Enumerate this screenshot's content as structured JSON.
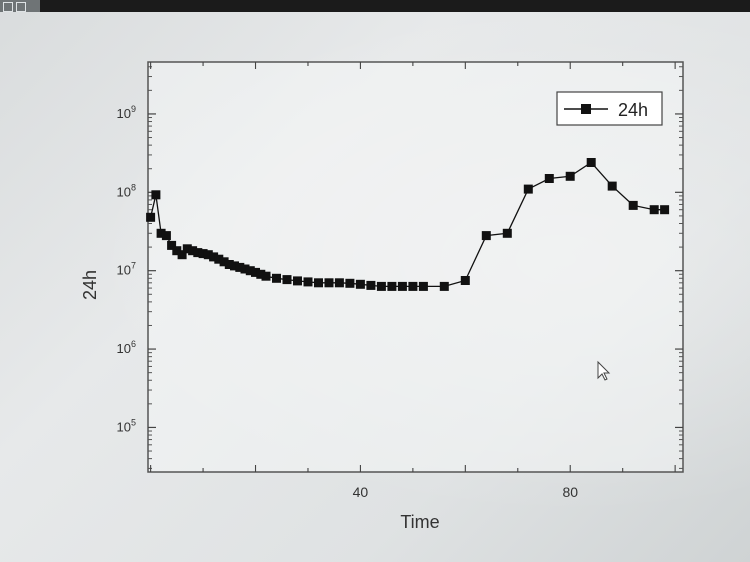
{
  "chart_data": {
    "type": "line",
    "xlabel": "Time",
    "ylabel": "24h",
    "x_ticks": [
      40,
      80
    ],
    "y_ticks": [
      100000,
      1000000,
      10000000,
      100000000,
      1000000000
    ],
    "y_tick_exponents": [
      "5",
      "6",
      "7",
      "8",
      "9"
    ],
    "y_tick_base": "10",
    "xlim": [
      -0.5,
      101.5
    ],
    "ylim": [
      27000,
      4600000000
    ],
    "yscale": "log",
    "grid": false,
    "legend_position": "top-right",
    "series": [
      {
        "name": "24h",
        "color": "#111111",
        "marker": "square",
        "x": [
          0,
          1,
          2,
          3,
          4,
          5,
          6,
          7,
          8,
          9,
          10,
          11,
          12,
          13,
          14,
          15,
          16,
          17,
          18,
          19,
          20,
          21,
          22,
          24,
          26,
          28,
          30,
          32,
          34,
          36,
          38,
          40,
          42,
          44,
          46,
          48,
          50,
          52,
          56,
          60,
          64,
          68,
          72,
          76,
          80,
          84,
          88,
          92,
          96,
          98
        ],
        "y": [
          48000000,
          93000000,
          30000000,
          28000000,
          21000000,
          18000000,
          16000000,
          19000000,
          18000000,
          17000000,
          16500000,
          16000000,
          15000000,
          14000000,
          13000000,
          12000000,
          11500000,
          11000000,
          10500000,
          10000000,
          9500000,
          9000000,
          8500000,
          8000000,
          7700000,
          7400000,
          7200000,
          7000000,
          7000000,
          7000000,
          6900000,
          6700000,
          6500000,
          6300000,
          6300000,
          6300000,
          6300000,
          6300000,
          6300000,
          7500000,
          28000000,
          30000000,
          110000000,
          150000000,
          160000000,
          240000000,
          120000000,
          68000000,
          60000000,
          60000000
        ]
      }
    ]
  }
}
